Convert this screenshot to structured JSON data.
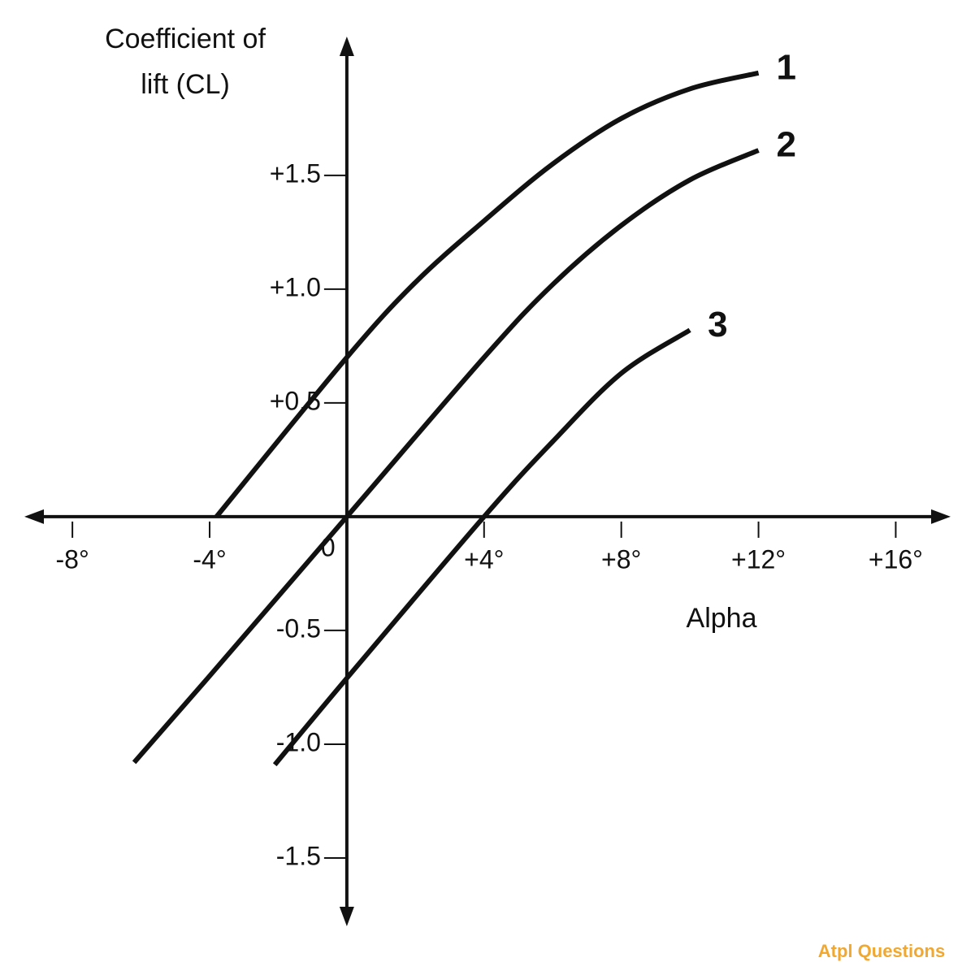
{
  "chart_data": {
    "type": "line",
    "y_label": [
      "Coefficient of",
      "lift (CL)"
    ],
    "x_label": "Alpha",
    "origin_label": "0",
    "watermark": "Atpl Questions",
    "xlim": [
      -9.4,
      17.6
    ],
    "ylim": [
      -1.8,
      2.11
    ],
    "xticks": [
      {
        "value": -8,
        "label": "-8°"
      },
      {
        "value": -4,
        "label": "-4°"
      },
      {
        "value": 4,
        "label": "+4°"
      },
      {
        "value": 8,
        "label": "+8°"
      },
      {
        "value": 12,
        "label": "+12°"
      },
      {
        "value": 16,
        "label": "+16°"
      }
    ],
    "yticks": [
      {
        "value": 1.5,
        "label": "+1.5"
      },
      {
        "value": 1,
        "label": "+1.0"
      },
      {
        "value": 0.5,
        "label": "+0.5"
      },
      {
        "value": -0.5,
        "label": "-0.5"
      },
      {
        "value": -1,
        "label": "-1.0"
      },
      {
        "value": -1.5,
        "label": "-1.5"
      }
    ],
    "series": [
      {
        "name": "1",
        "color": "#111111",
        "x": [
          -3.8,
          0,
          2,
          4,
          6,
          8,
          10,
          12
        ],
        "values": [
          0,
          0.7,
          1.03,
          1.3,
          1.55,
          1.75,
          1.88,
          1.95
        ]
      },
      {
        "name": "2",
        "color": "#111111",
        "x": [
          -6.2,
          -4,
          0,
          4,
          6,
          8,
          10,
          12
        ],
        "values": [
          -1.08,
          -0.7,
          0,
          0.7,
          1.02,
          1.28,
          1.48,
          1.61
        ]
      },
      {
        "name": "3",
        "color": "#111111",
        "x": [
          -2.1,
          0,
          4,
          6,
          8,
          10
        ],
        "values": [
          -1.09,
          -0.71,
          0,
          0.33,
          0.63,
          0.82
        ]
      }
    ]
  }
}
